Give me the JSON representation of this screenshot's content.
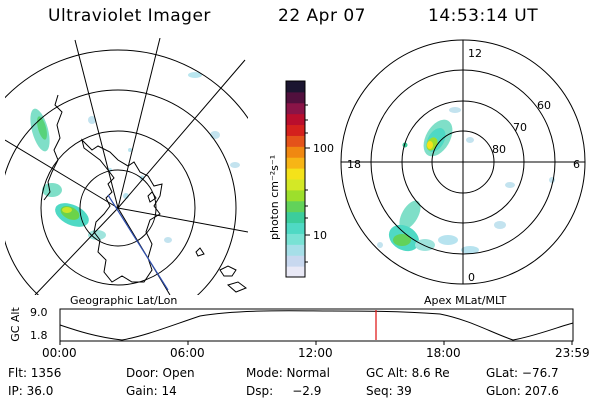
{
  "header": {
    "title": "Ultraviolet Imager",
    "date": "22 Apr 07",
    "time": "14:53:14 UT"
  },
  "left_map": {
    "label": "Geographic Lat/Lon"
  },
  "right_map": {
    "label": "Apex MLat/MLT",
    "mlt_labels": [
      "12",
      "18",
      "6",
      "0"
    ],
    "lat_labels": [
      "60",
      "70",
      "80"
    ]
  },
  "colorbar": {
    "unit_label": "photon cm⁻²s⁻¹",
    "tick_labels": [
      "100",
      "10"
    ],
    "colors": [
      "#e9e9f6",
      "#c8d8ef",
      "#a6dfe8",
      "#79e2d4",
      "#4fd9c4",
      "#3ccd9c",
      "#62d25a",
      "#9ddf2c",
      "#d3e826",
      "#f4e21a",
      "#f7b516",
      "#f08811",
      "#e4531a",
      "#d4211d",
      "#b90e2d",
      "#8a1447",
      "#51103d",
      "#1b1530"
    ]
  },
  "orbit_panel": {
    "ylabel": "GC Alt",
    "yticks": [
      "9.0",
      "1.8"
    ],
    "xticks": [
      "00:00",
      "06:00",
      "12:00",
      "18:00",
      "23:59"
    ],
    "current_marker_color": "#e02020"
  },
  "status": [
    [
      "Flt: 1356",
      "Door: Open",
      "Mode: Normal",
      "GC Alt: 8.6 Re",
      "GLat: −76.7"
    ],
    [
      "IP: 36.0",
      "Gain: 14",
      "Dsp:     −2.9",
      "Seq: 39",
      "GLon: 207.6"
    ]
  ]
}
